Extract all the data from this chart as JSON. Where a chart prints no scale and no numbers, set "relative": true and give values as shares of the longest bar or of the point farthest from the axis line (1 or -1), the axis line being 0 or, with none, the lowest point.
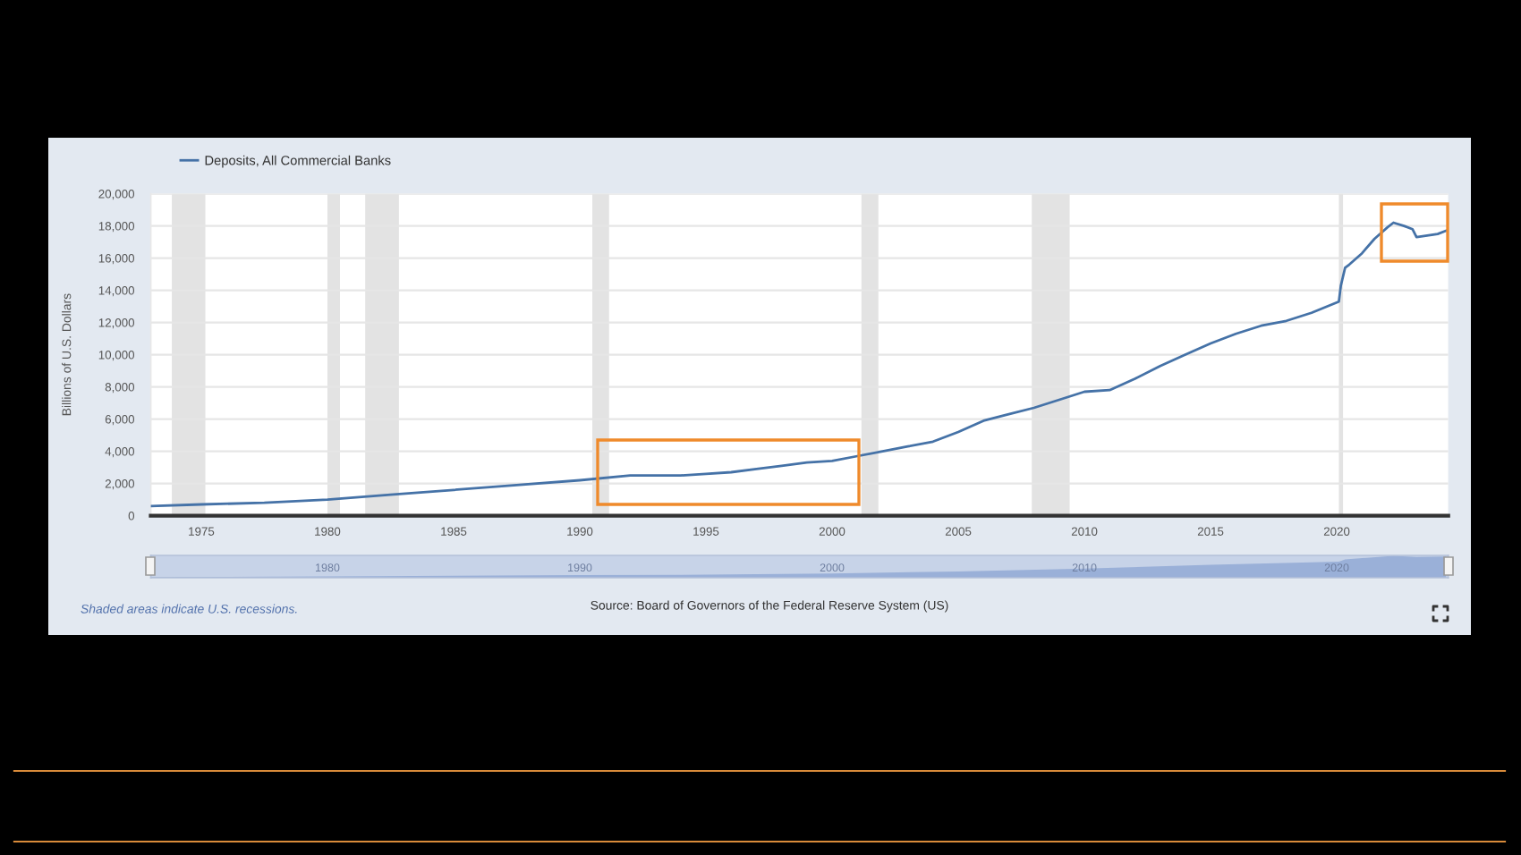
{
  "chart_data": [
    {
      "type": "line",
      "ylabel": "Billions of U.S. Dollars",
      "x": [
        "1973-01",
        "1975-01",
        "1977-07",
        "1980-01",
        "1982-07",
        "1985-01",
        "1987-07",
        "1990-01",
        "1992-01",
        "1994-01",
        "1995-01",
        "1996-01",
        "1997-01",
        "1998-01",
        "1999-01",
        "2000-01",
        "2001-01",
        "2002-01",
        "2003-01",
        "2004-01",
        "2005-01",
        "2006-01",
        "2007-01",
        "2008-01",
        "2009-01",
        "2010-01",
        "2011-01",
        "2012-01",
        "2013-01",
        "2014-01",
        "2015-01",
        "2016-01",
        "2017-01",
        "2018-01",
        "2019-01",
        "2020-02",
        "2020-03",
        "2020-05",
        "2020-07",
        "2021-01",
        "2021-07",
        "2022-01",
        "2022-04",
        "2022-09",
        "2023-01",
        "2023-03",
        "2023-08",
        "2024-01",
        "2024-05"
      ],
      "series": [
        {
          "name": "Deposits, All Commercial Banks",
          "color": "#4572a7",
          "values": [
            600,
            700,
            800,
            1000,
            1300,
            1600,
            1900,
            2200,
            2500,
            2500,
            2600,
            2700,
            2900,
            3100,
            3300,
            3400,
            3700,
            4000,
            4300,
            4600,
            5200,
            5900,
            6300,
            6700,
            7200,
            7700,
            7800,
            8500,
            9300,
            10000,
            10700,
            11300,
            11800,
            12100,
            12600,
            13300,
            14300,
            15400,
            15600,
            16300,
            17200,
            17900,
            18200,
            18000,
            17800,
            17300,
            17400,
            17500,
            17700
          ]
        }
      ],
      "xlim": [
        "1973-01",
        "2024-06"
      ],
      "xticks": [
        "1975",
        "1980",
        "1985",
        "1990",
        "1995",
        "2000",
        "2005",
        "2010",
        "2015",
        "2020"
      ],
      "ylim": [
        0,
        20000
      ],
      "yticks": [
        0,
        {
          "value": 2000,
          "label": "2,000"
        },
        {
          "value": 4000,
          "label": "4,000"
        },
        {
          "value": 6000,
          "label": "6,000"
        },
        {
          "value": 8000,
          "label": "8,000"
        },
        {
          "value": 10000,
          "label": "10,000"
        },
        {
          "value": 12000,
          "label": "12,000"
        },
        {
          "value": 14000,
          "label": "14,000"
        },
        {
          "value": 16000,
          "label": "16,000"
        },
        {
          "value": 18000,
          "label": "18,000"
        },
        {
          "value": 20000,
          "label": "20,000"
        }
      ],
      "grid": "y",
      "legend": "top left",
      "bands": [
        {
          "axis": "x",
          "from": "1973-11",
          "to": "1975-03",
          "color": "#e3e3e3"
        },
        {
          "axis": "x",
          "from": "1980-01",
          "to": "1980-07",
          "color": "#e3e3e3"
        },
        {
          "axis": "x",
          "from": "1981-07",
          "to": "1982-11",
          "color": "#e3e3e3"
        },
        {
          "axis": "x",
          "from": "1990-07",
          "to": "1991-03",
          "color": "#e3e3e3"
        },
        {
          "axis": "x",
          "from": "2001-03",
          "to": "2001-11",
          "color": "#e3e3e3"
        },
        {
          "axis": "x",
          "from": "2007-12",
          "to": "2009-06",
          "color": "#e3e3e3"
        },
        {
          "axis": "x",
          "from": "2020-02",
          "to": "2020-04",
          "color": "#e3e3e3"
        }
      ],
      "annotations": [
        "Shaded areas indicate U.S. recessions.",
        "Source: Board of Governors of the Federal Reserve System (US)"
      ]
    },
    {
      "type": "area",
      "relative": true,
      "x": [
        "1973-01",
        "1980-01",
        "1990-01",
        "1995-01",
        "2000-01",
        "2005-01",
        "2010-01",
        "2015-01",
        "2020-02",
        "2020-05",
        "2022-04",
        "2023-03",
        "2024-05"
      ],
      "values": [
        0.03,
        0.06,
        0.12,
        0.14,
        0.19,
        0.29,
        0.42,
        0.59,
        0.73,
        0.84,
        1,
        0.95,
        0.97
      ],
      "color": "#9ab0d8",
      "xlim": [
        "1973-01",
        "2024-06"
      ],
      "xticks": [
        "1980",
        "1990",
        "2000",
        "2010",
        "2020"
      ]
    }
  ]
}
